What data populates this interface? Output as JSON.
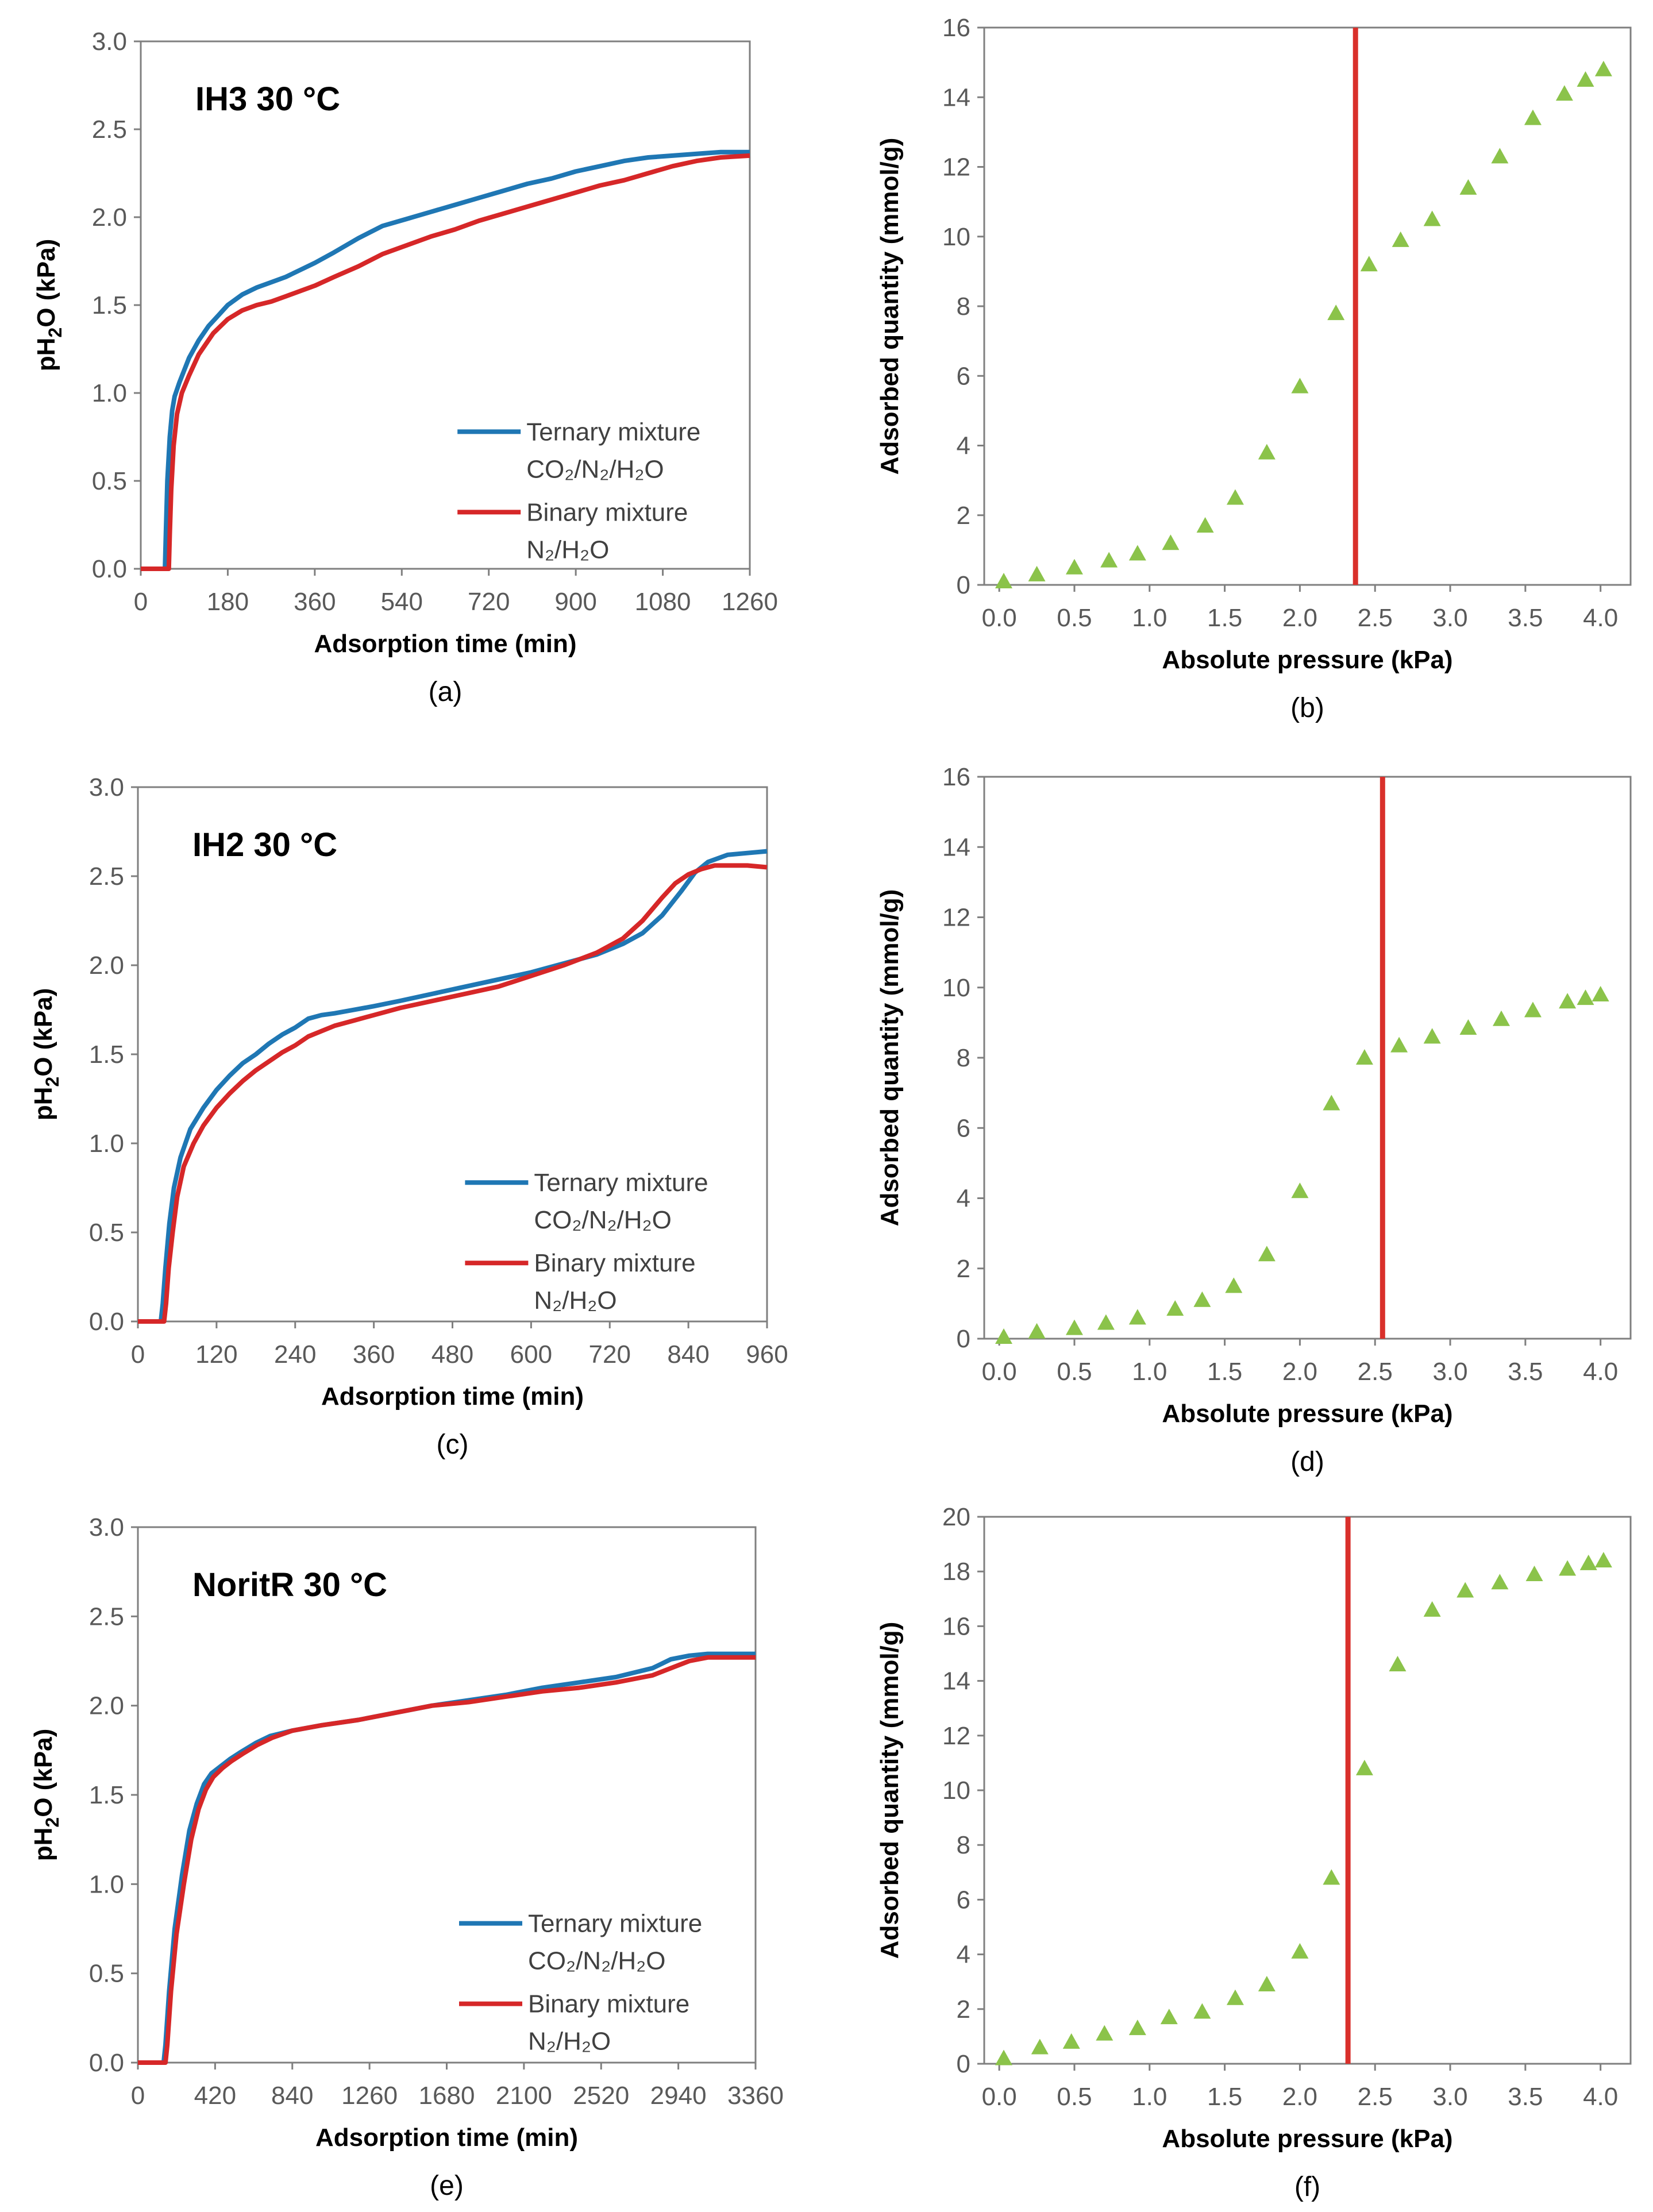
{
  "chart_data": [
    {
      "type": "line",
      "panel_label": "(a)",
      "inset_title": "IH3 30 °C",
      "xlabel": "Adsorption time (min)",
      "ylabel_main": "pH",
      "ylabel_sub": "2",
      "ylabel_rest": "O (kPa)",
      "xticks": [
        "0",
        "180",
        "360",
        "540",
        "720",
        "900",
        "1080",
        "1260"
      ],
      "yticks": [
        "0.0",
        "0.5",
        "1.0",
        "1.5",
        "2.0",
        "2.5",
        "3.0"
      ],
      "xlim": [
        0,
        1260
      ],
      "ylim": [
        0,
        3
      ],
      "legend": {
        "ternary_line1": "Ternary mixture",
        "ternary_line2": "CO₂/N₂/H₂O",
        "binary_line1": "Binary mixture",
        "binary_line2": "N₂/H₂O"
      },
      "series": [
        {
          "name": "Ternary mixture CO2/N2/H2O",
          "color": "#1f77b4",
          "x": [
            0,
            50,
            52,
            55,
            60,
            65,
            70,
            80,
            90,
            100,
            120,
            140,
            160,
            180,
            210,
            240,
            270,
            300,
            330,
            360,
            400,
            450,
            500,
            550,
            600,
            650,
            700,
            750,
            800,
            850,
            900,
            950,
            1000,
            1050,
            1100,
            1150,
            1200,
            1260
          ],
          "y": [
            0,
            0,
            0.2,
            0.5,
            0.75,
            0.9,
            0.98,
            1.06,
            1.13,
            1.2,
            1.3,
            1.38,
            1.44,
            1.5,
            1.56,
            1.6,
            1.63,
            1.66,
            1.7,
            1.74,
            1.8,
            1.88,
            1.95,
            1.99,
            2.03,
            2.07,
            2.11,
            2.15,
            2.19,
            2.22,
            2.26,
            2.29,
            2.32,
            2.34,
            2.35,
            2.36,
            2.37,
            2.37
          ]
        },
        {
          "name": "Binary mixture N2/H2O",
          "color": "#d62728",
          "x": [
            0,
            58,
            60,
            63,
            68,
            75,
            85,
            100,
            120,
            150,
            180,
            210,
            240,
            270,
            300,
            330,
            360,
            400,
            450,
            500,
            550,
            600,
            650,
            700,
            750,
            800,
            850,
            900,
            950,
            1000,
            1050,
            1100,
            1150,
            1200,
            1260
          ],
          "y": [
            0,
            0,
            0.2,
            0.45,
            0.7,
            0.88,
            1.0,
            1.1,
            1.22,
            1.34,
            1.42,
            1.47,
            1.5,
            1.52,
            1.55,
            1.58,
            1.61,
            1.66,
            1.72,
            1.79,
            1.84,
            1.89,
            1.93,
            1.98,
            2.02,
            2.06,
            2.1,
            2.14,
            2.18,
            2.21,
            2.25,
            2.29,
            2.32,
            2.34,
            2.35
          ]
        }
      ]
    },
    {
      "type": "scatter",
      "panel_label": "(b)",
      "xlabel": "Absolute pressure (kPa)",
      "ylabel": "Adsorbed quantity (mmol/g)",
      "xticks": [
        "0.0",
        "0.5",
        "1.0",
        "1.5",
        "2.0",
        "2.5",
        "3.0",
        "3.5",
        "4.0"
      ],
      "yticks": [
        "0",
        "2",
        "4",
        "6",
        "8",
        "10",
        "12",
        "14",
        "16"
      ],
      "xlim": [
        -0.1,
        4.2
      ],
      "ylim": [
        0,
        16
      ],
      "marker_color": "#8bc34a",
      "vertical_line_x": 2.37,
      "vertical_line_color": "#d9302b",
      "x": [
        0.03,
        0.25,
        0.5,
        0.73,
        0.92,
        1.14,
        1.37,
        1.57,
        1.78,
        2.0,
        2.24,
        2.46,
        2.67,
        2.88,
        3.12,
        3.33,
        3.55,
        3.76,
        3.9,
        4.02
      ],
      "y": [
        0.1,
        0.3,
        0.5,
        0.7,
        0.9,
        1.2,
        1.7,
        2.5,
        3.8,
        5.7,
        7.8,
        9.2,
        9.9,
        10.5,
        11.4,
        12.3,
        13.4,
        14.1,
        14.5,
        14.8
      ]
    },
    {
      "type": "line",
      "panel_label": "(c)",
      "inset_title": "IH2 30 °C",
      "xlabel": "Adsorption time (min)",
      "ylabel_main": "pH",
      "ylabel_sub": "2",
      "ylabel_rest": "O (kPa)",
      "xticks": [
        "0",
        "120",
        "240",
        "360",
        "480",
        "600",
        "720",
        "840",
        "960"
      ],
      "yticks": [
        "0.0",
        "0.5",
        "1.0",
        "1.5",
        "2.0",
        "2.5",
        "3.0"
      ],
      "xlim": [
        0,
        960
      ],
      "ylim": [
        0,
        3
      ],
      "legend": {
        "ternary_line1": "Ternary mixture",
        "ternary_line2": "CO₂/N₂/H₂O",
        "binary_line1": "Binary mixture",
        "binary_line2": "N₂/H₂O"
      },
      "series": [
        {
          "name": "Ternary mixture CO2/N2/H2O",
          "color": "#1f77b4",
          "x": [
            0,
            35,
            38,
            42,
            48,
            55,
            65,
            80,
            100,
            120,
            140,
            160,
            180,
            200,
            220,
            240,
            260,
            280,
            300,
            330,
            360,
            400,
            450,
            500,
            550,
            600,
            650,
            700,
            740,
            770,
            800,
            830,
            850,
            870,
            900,
            930,
            960
          ],
          "y": [
            0,
            0,
            0.1,
            0.3,
            0.55,
            0.75,
            0.92,
            1.08,
            1.2,
            1.3,
            1.38,
            1.45,
            1.5,
            1.56,
            1.61,
            1.65,
            1.7,
            1.72,
            1.73,
            1.75,
            1.77,
            1.8,
            1.84,
            1.88,
            1.92,
            1.96,
            2.01,
            2.06,
            2.12,
            2.18,
            2.28,
            2.42,
            2.52,
            2.58,
            2.62,
            2.63,
            2.64
          ]
        },
        {
          "name": "Binary mixture N2/H2O",
          "color": "#d62728",
          "x": [
            0,
            40,
            43,
            47,
            53,
            60,
            70,
            85,
            100,
            120,
            140,
            160,
            180,
            200,
            220,
            240,
            260,
            280,
            300,
            330,
            360,
            400,
            450,
            500,
            550,
            600,
            650,
            700,
            740,
            770,
            800,
            820,
            840,
            860,
            880,
            900,
            930,
            960
          ],
          "y": [
            0,
            0,
            0.1,
            0.3,
            0.5,
            0.7,
            0.87,
            1.0,
            1.1,
            1.2,
            1.28,
            1.35,
            1.41,
            1.46,
            1.51,
            1.55,
            1.6,
            1.63,
            1.66,
            1.69,
            1.72,
            1.76,
            1.8,
            1.84,
            1.88,
            1.94,
            2.0,
            2.07,
            2.15,
            2.25,
            2.38,
            2.46,
            2.51,
            2.54,
            2.56,
            2.56,
            2.56,
            2.55
          ]
        }
      ]
    },
    {
      "type": "scatter",
      "panel_label": "(d)",
      "xlabel": "Absolute pressure (kPa)",
      "ylabel": "Adsorbed quantity (mmol/g)",
      "xticks": [
        "0.0",
        "0.5",
        "1.0",
        "1.5",
        "2.0",
        "2.5",
        "3.0",
        "3.5",
        "4.0"
      ],
      "yticks": [
        "0",
        "2",
        "4",
        "6",
        "8",
        "10",
        "12",
        "14",
        "16"
      ],
      "xlim": [
        -0.1,
        4.2
      ],
      "ylim": [
        0,
        16
      ],
      "marker_color": "#8bc34a",
      "vertical_line_x": 2.55,
      "vertical_line_color": "#d9302b",
      "x": [
        0.03,
        0.25,
        0.5,
        0.71,
        0.92,
        1.17,
        1.35,
        1.56,
        1.78,
        2.0,
        2.21,
        2.43,
        2.66,
        2.88,
        3.12,
        3.34,
        3.55,
        3.78,
        3.9,
        4.0
      ],
      "y": [
        0.05,
        0.2,
        0.3,
        0.45,
        0.6,
        0.85,
        1.1,
        1.5,
        2.4,
        4.2,
        6.7,
        8.0,
        8.35,
        8.6,
        8.85,
        9.1,
        9.35,
        9.6,
        9.7,
        9.8
      ]
    },
    {
      "type": "line",
      "panel_label": "(e)",
      "inset_title": "NoritR 30 °C",
      "xlabel": "Adsorption time (min)",
      "ylabel_main": "pH",
      "ylabel_sub": "2",
      "ylabel_rest": "O (kPa)",
      "xticks": [
        "0",
        "420",
        "840",
        "1260",
        "1680",
        "2100",
        "2520",
        "2940",
        "3360"
      ],
      "yticks": [
        "0.0",
        "0.5",
        "1.0",
        "1.5",
        "2.0",
        "2.5",
        "3.0"
      ],
      "xlim": [
        0,
        3360
      ],
      "ylim": [
        0,
        3
      ],
      "legend": {
        "ternary_line1": "Ternary mixture",
        "ternary_line2": "CO₂/N₂/H₂O",
        "binary_line1": "Binary mixture",
        "binary_line2": "N₂/H₂O"
      },
      "series": [
        {
          "name": "Ternary mixture CO2/N2/H2O",
          "color": "#1f77b4",
          "x": [
            0,
            140,
            150,
            170,
            200,
            240,
            280,
            320,
            360,
            400,
            450,
            500,
            560,
            640,
            720,
            840,
            1000,
            1200,
            1400,
            1600,
            1800,
            2000,
            2200,
            2400,
            2600,
            2800,
            2900,
            3000,
            3100,
            3200,
            3360
          ],
          "y": [
            0,
            0,
            0.1,
            0.4,
            0.75,
            1.05,
            1.3,
            1.45,
            1.56,
            1.62,
            1.66,
            1.7,
            1.74,
            1.79,
            1.83,
            1.86,
            1.89,
            1.92,
            1.96,
            2.0,
            2.03,
            2.06,
            2.1,
            2.13,
            2.16,
            2.21,
            2.26,
            2.28,
            2.29,
            2.29,
            2.29
          ]
        },
        {
          "name": "Binary mixture N2/H2O",
          "color": "#d62728",
          "x": [
            0,
            150,
            160,
            180,
            210,
            250,
            290,
            330,
            370,
            410,
            460,
            510,
            570,
            650,
            730,
            840,
            1000,
            1200,
            1400,
            1600,
            1800,
            2000,
            2200,
            2400,
            2600,
            2800,
            2900,
            3000,
            3100,
            3200,
            3360
          ],
          "y": [
            0,
            0,
            0.1,
            0.4,
            0.72,
            1.0,
            1.25,
            1.42,
            1.53,
            1.6,
            1.65,
            1.69,
            1.73,
            1.78,
            1.82,
            1.86,
            1.89,
            1.92,
            1.96,
            2.0,
            2.02,
            2.05,
            2.08,
            2.1,
            2.13,
            2.17,
            2.21,
            2.25,
            2.27,
            2.27,
            2.27
          ]
        }
      ]
    },
    {
      "type": "scatter",
      "panel_label": "(f)",
      "xlabel": "Absolute pressure (kPa)",
      "ylabel": "Adsorbed quantity (mmol/g)",
      "xticks": [
        "0.0",
        "0.5",
        "1.0",
        "1.5",
        "2.0",
        "2.5",
        "3.0",
        "3.5",
        "4.0"
      ],
      "yticks": [
        "0",
        "2",
        "4",
        "6",
        "8",
        "10",
        "12",
        "14",
        "16",
        "18",
        "20"
      ],
      "xlim": [
        -0.1,
        4.2
      ],
      "ylim": [
        0,
        20
      ],
      "marker_color": "#8bc34a",
      "vertical_line_x": 2.32,
      "vertical_line_color": "#d9302b",
      "x": [
        0.03,
        0.27,
        0.48,
        0.7,
        0.92,
        1.13,
        1.35,
        1.57,
        1.78,
        2.0,
        2.21,
        2.43,
        2.65,
        2.88,
        3.1,
        3.33,
        3.56,
        3.78,
        3.92,
        4.02
      ],
      "y": [
        0.2,
        0.6,
        0.8,
        1.1,
        1.3,
        1.7,
        1.9,
        2.4,
        2.9,
        4.1,
        6.8,
        10.8,
        14.6,
        16.6,
        17.3,
        17.6,
        17.9,
        18.1,
        18.3,
        18.4
      ]
    }
  ]
}
